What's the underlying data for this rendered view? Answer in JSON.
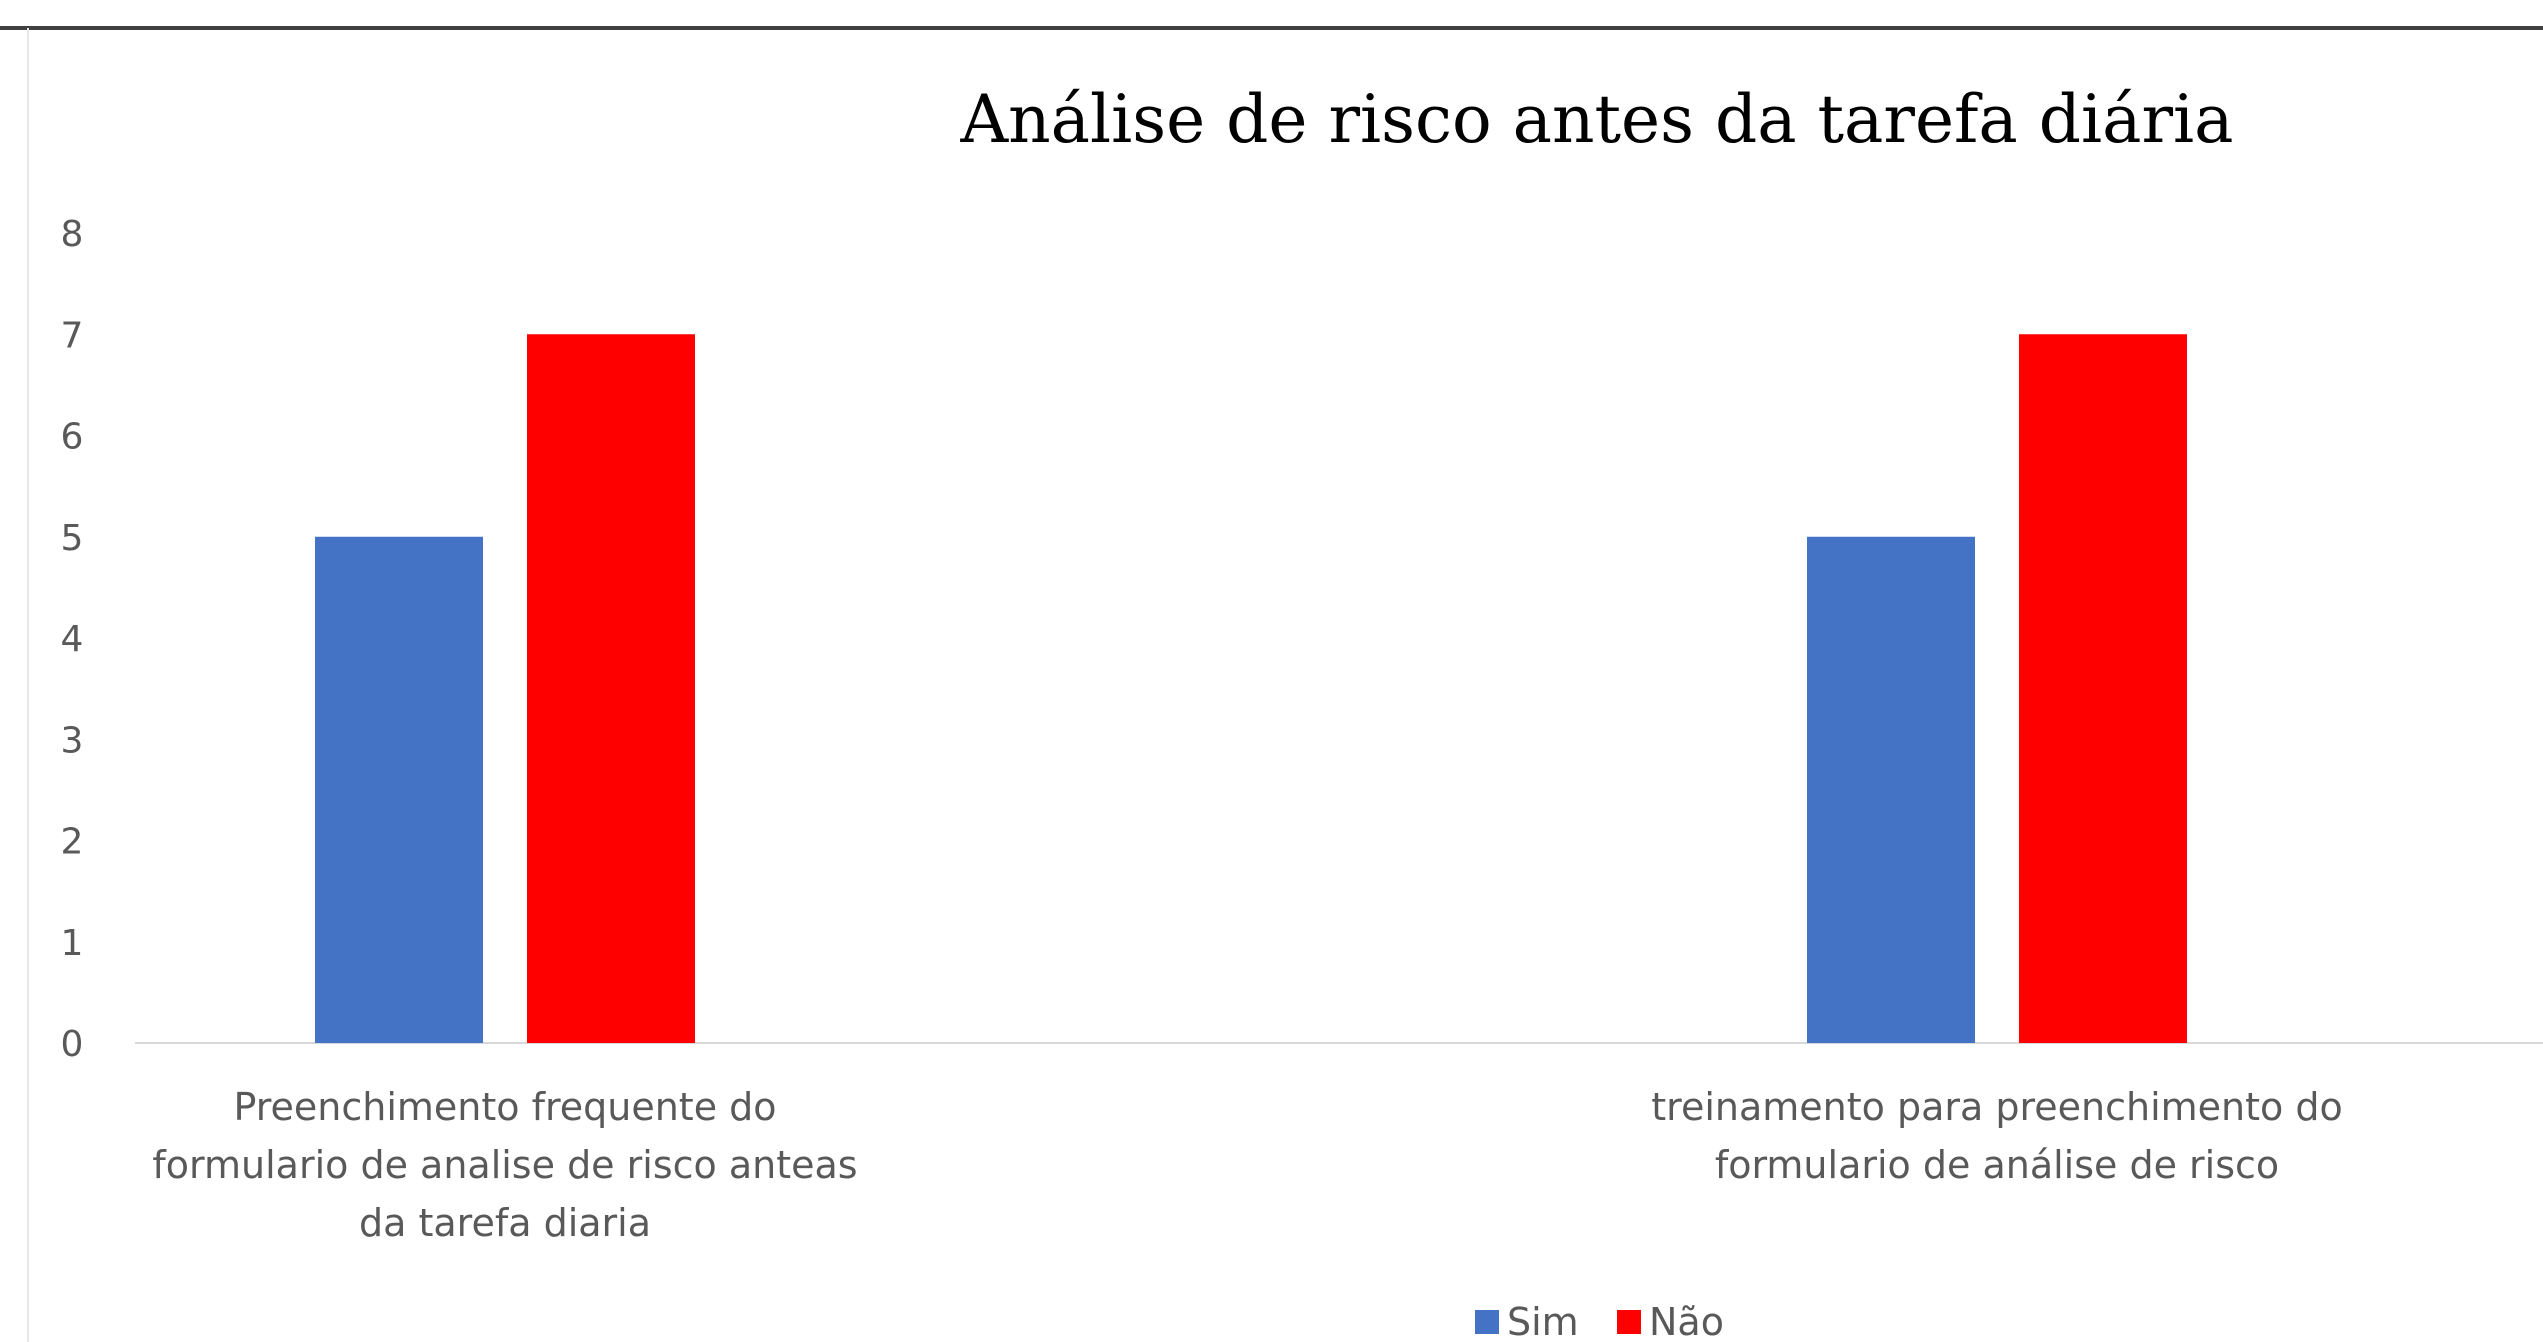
{
  "chart_data": {
    "type": "bar",
    "title": "Análise de risco antes da tarefa diária",
    "categories": [
      [
        "Preenchimento frequente do",
        "formulario de analise de risco anteas",
        "da tarefa diaria"
      ],
      [
        "treinamento para preenchimento do",
        "formulario de análise de risco"
      ]
    ],
    "series": [
      {
        "name": "Sim",
        "color": "#4472C4",
        "values": [
          5,
          5
        ]
      },
      {
        "name": "Não",
        "color": "#FF0000",
        "values": [
          7,
          7
        ]
      }
    ],
    "ylim": [
      0,
      8
    ],
    "yticks": [
      "0",
      "1",
      "2",
      "3",
      "4",
      "5",
      "6",
      "7",
      "8"
    ],
    "grid": false,
    "legend": "bottom"
  }
}
